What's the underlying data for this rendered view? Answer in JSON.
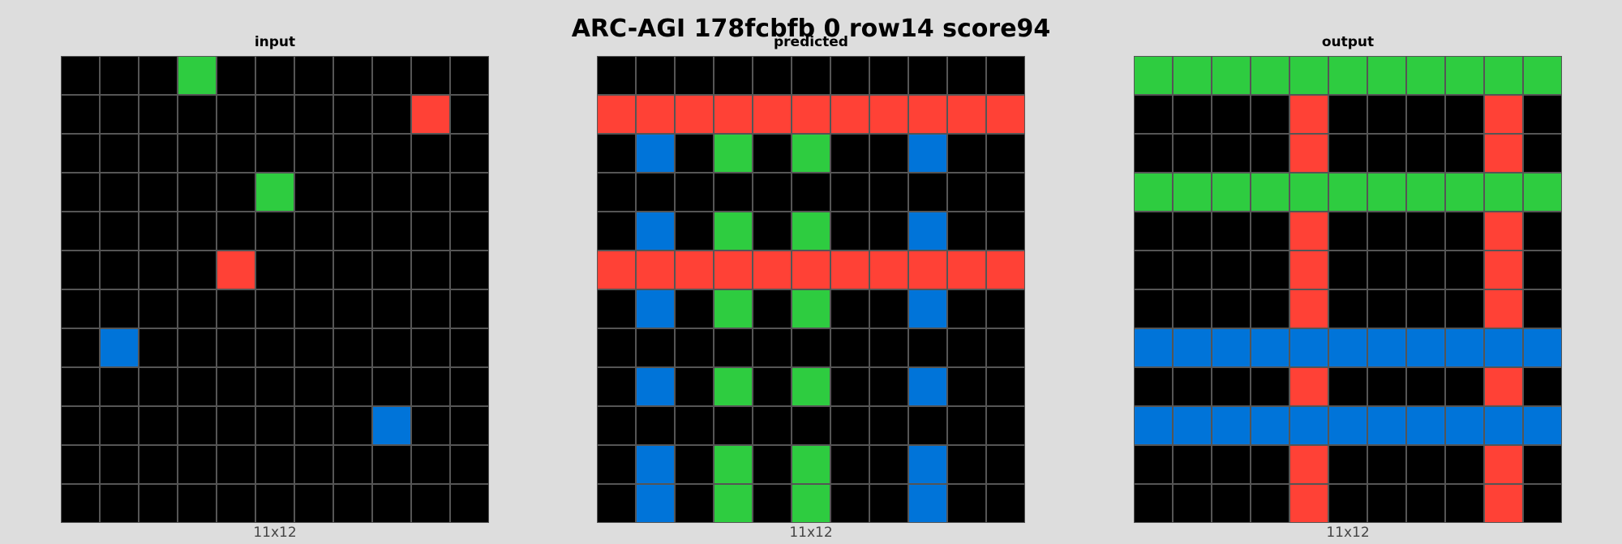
{
  "title": "ARC-AGI 178fcbfb 0 row14 score94",
  "palette": {
    "0": "#000000",
    "1": "#0074d9",
    "2": "#ff4136",
    "3": "#2ecc40"
  },
  "panels": [
    {
      "label": "input",
      "size_label": "11x12",
      "grid": [
        [
          0,
          0,
          0,
          3,
          0,
          0,
          0,
          0,
          0,
          0,
          0
        ],
        [
          0,
          0,
          0,
          0,
          0,
          0,
          0,
          0,
          0,
          2,
          0
        ],
        [
          0,
          0,
          0,
          0,
          0,
          0,
          0,
          0,
          0,
          0,
          0
        ],
        [
          0,
          0,
          0,
          0,
          0,
          3,
          0,
          0,
          0,
          0,
          0
        ],
        [
          0,
          0,
          0,
          0,
          0,
          0,
          0,
          0,
          0,
          0,
          0
        ],
        [
          0,
          0,
          0,
          0,
          2,
          0,
          0,
          0,
          0,
          0,
          0
        ],
        [
          0,
          0,
          0,
          0,
          0,
          0,
          0,
          0,
          0,
          0,
          0
        ],
        [
          0,
          1,
          0,
          0,
          0,
          0,
          0,
          0,
          0,
          0,
          0
        ],
        [
          0,
          0,
          0,
          0,
          0,
          0,
          0,
          0,
          0,
          0,
          0
        ],
        [
          0,
          0,
          0,
          0,
          0,
          0,
          0,
          0,
          1,
          0,
          0
        ],
        [
          0,
          0,
          0,
          0,
          0,
          0,
          0,
          0,
          0,
          0,
          0
        ],
        [
          0,
          0,
          0,
          0,
          0,
          0,
          0,
          0,
          0,
          0,
          0
        ]
      ]
    },
    {
      "label": "predicted",
      "size_label": "11x12",
      "grid": [
        [
          0,
          0,
          0,
          0,
          0,
          0,
          0,
          0,
          0,
          0,
          0
        ],
        [
          2,
          2,
          2,
          2,
          2,
          2,
          2,
          2,
          2,
          2,
          2
        ],
        [
          0,
          1,
          0,
          3,
          0,
          3,
          0,
          0,
          1,
          0,
          0
        ],
        [
          0,
          0,
          0,
          0,
          0,
          0,
          0,
          0,
          0,
          0,
          0
        ],
        [
          0,
          1,
          0,
          3,
          0,
          3,
          0,
          0,
          1,
          0,
          0
        ],
        [
          2,
          2,
          2,
          2,
          2,
          2,
          2,
          2,
          2,
          2,
          2
        ],
        [
          0,
          1,
          0,
          3,
          0,
          3,
          0,
          0,
          1,
          0,
          0
        ],
        [
          0,
          0,
          0,
          0,
          0,
          0,
          0,
          0,
          0,
          0,
          0
        ],
        [
          0,
          1,
          0,
          3,
          0,
          3,
          0,
          0,
          1,
          0,
          0
        ],
        [
          0,
          0,
          0,
          0,
          0,
          0,
          0,
          0,
          0,
          0,
          0
        ],
        [
          0,
          1,
          0,
          3,
          0,
          3,
          0,
          0,
          1,
          0,
          0
        ],
        [
          0,
          1,
          0,
          3,
          0,
          3,
          0,
          0,
          1,
          0,
          0
        ]
      ]
    },
    {
      "label": "output",
      "size_label": "11x12",
      "grid": [
        [
          3,
          3,
          3,
          3,
          3,
          3,
          3,
          3,
          3,
          3,
          3
        ],
        [
          0,
          0,
          0,
          0,
          2,
          0,
          0,
          0,
          0,
          2,
          0
        ],
        [
          0,
          0,
          0,
          0,
          2,
          0,
          0,
          0,
          0,
          2,
          0
        ],
        [
          3,
          3,
          3,
          3,
          3,
          3,
          3,
          3,
          3,
          3,
          3
        ],
        [
          0,
          0,
          0,
          0,
          2,
          0,
          0,
          0,
          0,
          2,
          0
        ],
        [
          0,
          0,
          0,
          0,
          2,
          0,
          0,
          0,
          0,
          2,
          0
        ],
        [
          0,
          0,
          0,
          0,
          2,
          0,
          0,
          0,
          0,
          2,
          0
        ],
        [
          1,
          1,
          1,
          1,
          1,
          1,
          1,
          1,
          1,
          1,
          1
        ],
        [
          0,
          0,
          0,
          0,
          2,
          0,
          0,
          0,
          0,
          2,
          0
        ],
        [
          1,
          1,
          1,
          1,
          1,
          1,
          1,
          1,
          1,
          1,
          1
        ],
        [
          0,
          0,
          0,
          0,
          2,
          0,
          0,
          0,
          0,
          2,
          0
        ],
        [
          0,
          0,
          0,
          0,
          2,
          0,
          0,
          0,
          0,
          2,
          0
        ]
      ]
    }
  ]
}
